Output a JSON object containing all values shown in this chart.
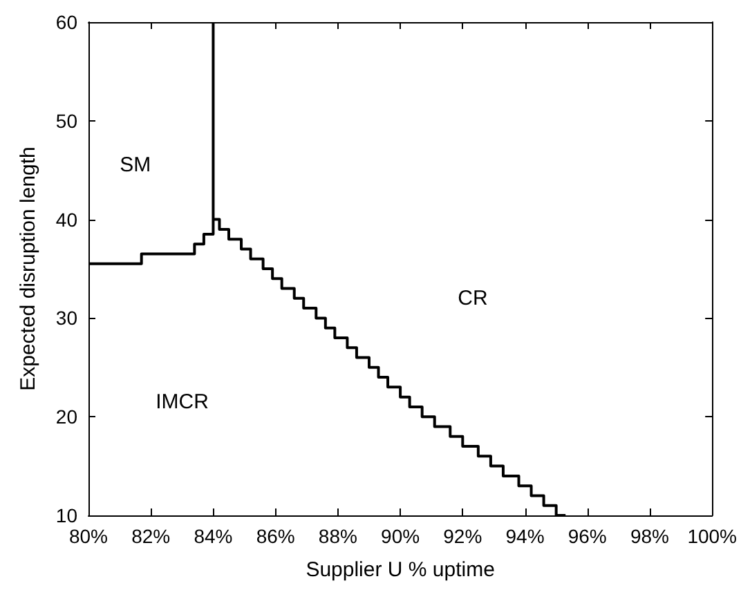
{
  "chart_data": {
    "type": "step",
    "xlabel": "Supplier U % uptime",
    "ylabel": "Expected disruption length",
    "xlim": [
      80,
      100
    ],
    "ylim": [
      10,
      60
    ],
    "xticks": [
      {
        "value": 80,
        "label": "80%"
      },
      {
        "value": 82,
        "label": "82%"
      },
      {
        "value": 84,
        "label": "84%"
      },
      {
        "value": 86,
        "label": "86%"
      },
      {
        "value": 88,
        "label": "88%"
      },
      {
        "value": 90,
        "label": "90%"
      },
      {
        "value": 92,
        "label": "92%"
      },
      {
        "value": 94,
        "label": "94%"
      },
      {
        "value": 96,
        "label": "96%"
      },
      {
        "value": 98,
        "label": "98%"
      },
      {
        "value": 100,
        "label": "100%"
      }
    ],
    "yticks": [
      10,
      20,
      30,
      40,
      50,
      60
    ],
    "grid": false,
    "marker": "none",
    "line_style": "solid",
    "series": [
      {
        "color": "#000000",
        "x": [
          80,
          81.7,
          83.4,
          83.7,
          84.0,
          84.0
        ],
        "values": [
          35.5,
          36.5,
          37.5,
          38.5,
          40,
          60
        ]
      },
      {
        "color": "#000000",
        "x": [
          84.0,
          84.2,
          84.5,
          84.9,
          85.2,
          85.6,
          85.9,
          86.2,
          86.6,
          86.9,
          87.3,
          87.6,
          87.9,
          88.3,
          88.6,
          89.0,
          89.3,
          89.6,
          90.0,
          90.3,
          90.7,
          91.1,
          91.6,
          92.0,
          92.5,
          92.9,
          93.3,
          93.8,
          94.2,
          94.6,
          95.0,
          95.3
        ],
        "values": [
          40,
          39,
          38,
          37,
          36,
          35,
          34,
          33,
          32,
          31,
          30,
          29,
          28,
          27,
          26,
          25,
          24,
          23,
          22,
          21,
          20,
          19,
          18,
          17,
          16,
          15,
          14,
          13,
          12,
          11,
          10,
          10
        ]
      }
    ],
    "annotations": [
      "SM",
      "CR",
      "IMCR"
    ]
  }
}
